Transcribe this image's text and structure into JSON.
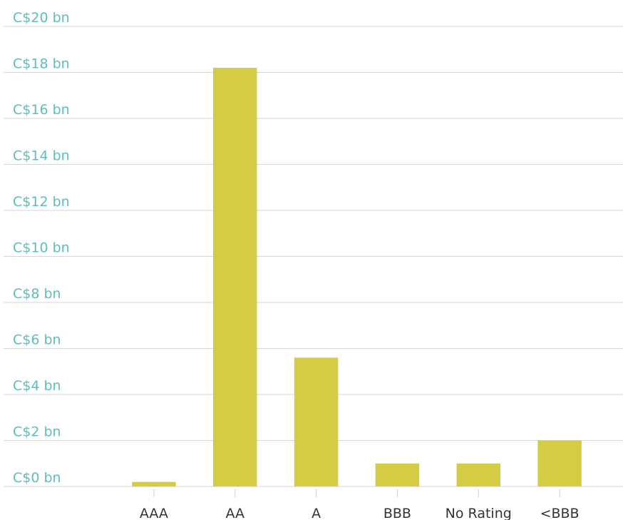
{
  "chart_data": {
    "type": "bar",
    "categories": [
      "AAA",
      "AA",
      "A",
      "BBB",
      "No Rating",
      "<BBB"
    ],
    "values": [
      0.2,
      18.2,
      5.6,
      1.0,
      1.0,
      2.0
    ],
    "color": "#d4cc44",
    "ylim": [
      0,
      20
    ],
    "yticks": [
      {
        "value": 0,
        "label": "C$0 bn"
      },
      {
        "value": 2,
        "label": "C$2 bn"
      },
      {
        "value": 4,
        "label": "C$4 bn"
      },
      {
        "value": 6,
        "label": "C$6 bn"
      },
      {
        "value": 8,
        "label": "C$8 bn"
      },
      {
        "value": 10,
        "label": "C$10 bn"
      },
      {
        "value": 12,
        "label": "C$12 bn"
      },
      {
        "value": 14,
        "label": "C$14 bn"
      },
      {
        "value": 16,
        "label": "C$16 bn"
      },
      {
        "value": 18,
        "label": "C$18 bn"
      },
      {
        "value": 20,
        "label": "C$20 bn"
      }
    ],
    "grid": true
  }
}
